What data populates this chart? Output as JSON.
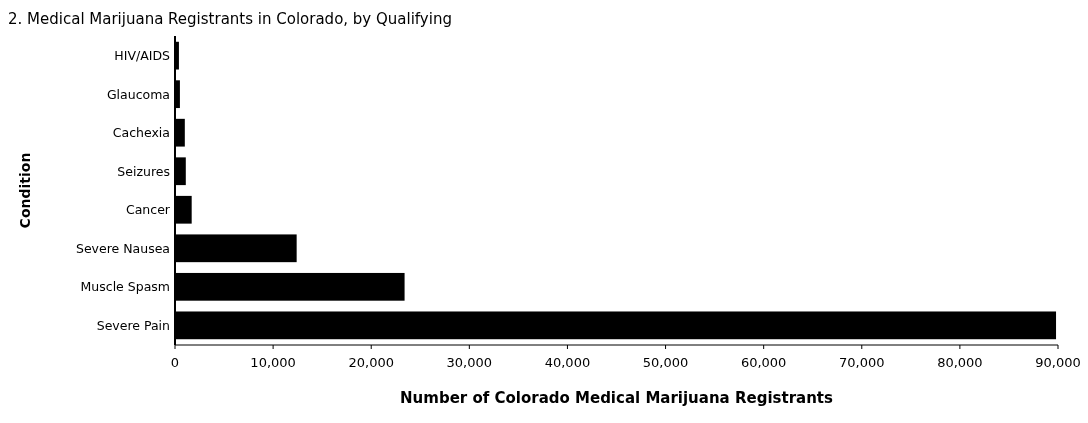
{
  "chart_data": {
    "type": "bar",
    "orientation": "horizontal",
    "title": "2. Medical Marijuana Registrants in Colorado, by Qualifying",
    "xlabel": "Number of Colorado Medical Marijuana Registrants",
    "ylabel": "Condition",
    "categories": [
      "HIV/AIDS",
      "Glaucoma",
      "Cachexia",
      "Seizures",
      "Cancer",
      "Severe Nausea",
      "Muscle Spasm",
      "Severe Pain"
    ],
    "values": [
      400,
      500,
      1000,
      1100,
      1700,
      12400,
      23400,
      89800
    ],
    "color": "#000000",
    "xlim": [
      0,
      90000
    ],
    "xticks": [
      {
        "value": 0,
        "label": "0"
      },
      {
        "value": 10000,
        "label": "10,000"
      },
      {
        "value": 20000,
        "label": "20,000"
      },
      {
        "value": 30000,
        "label": "30,000"
      },
      {
        "value": 40000,
        "label": "40,000"
      },
      {
        "value": 50000,
        "label": "50,000"
      },
      {
        "value": 60000,
        "label": "60,000"
      },
      {
        "value": 70000,
        "label": "70,000"
      },
      {
        "value": 80000,
        "label": "80,000"
      },
      {
        "value": 90000,
        "label": "90,000"
      }
    ],
    "grid": false
  }
}
